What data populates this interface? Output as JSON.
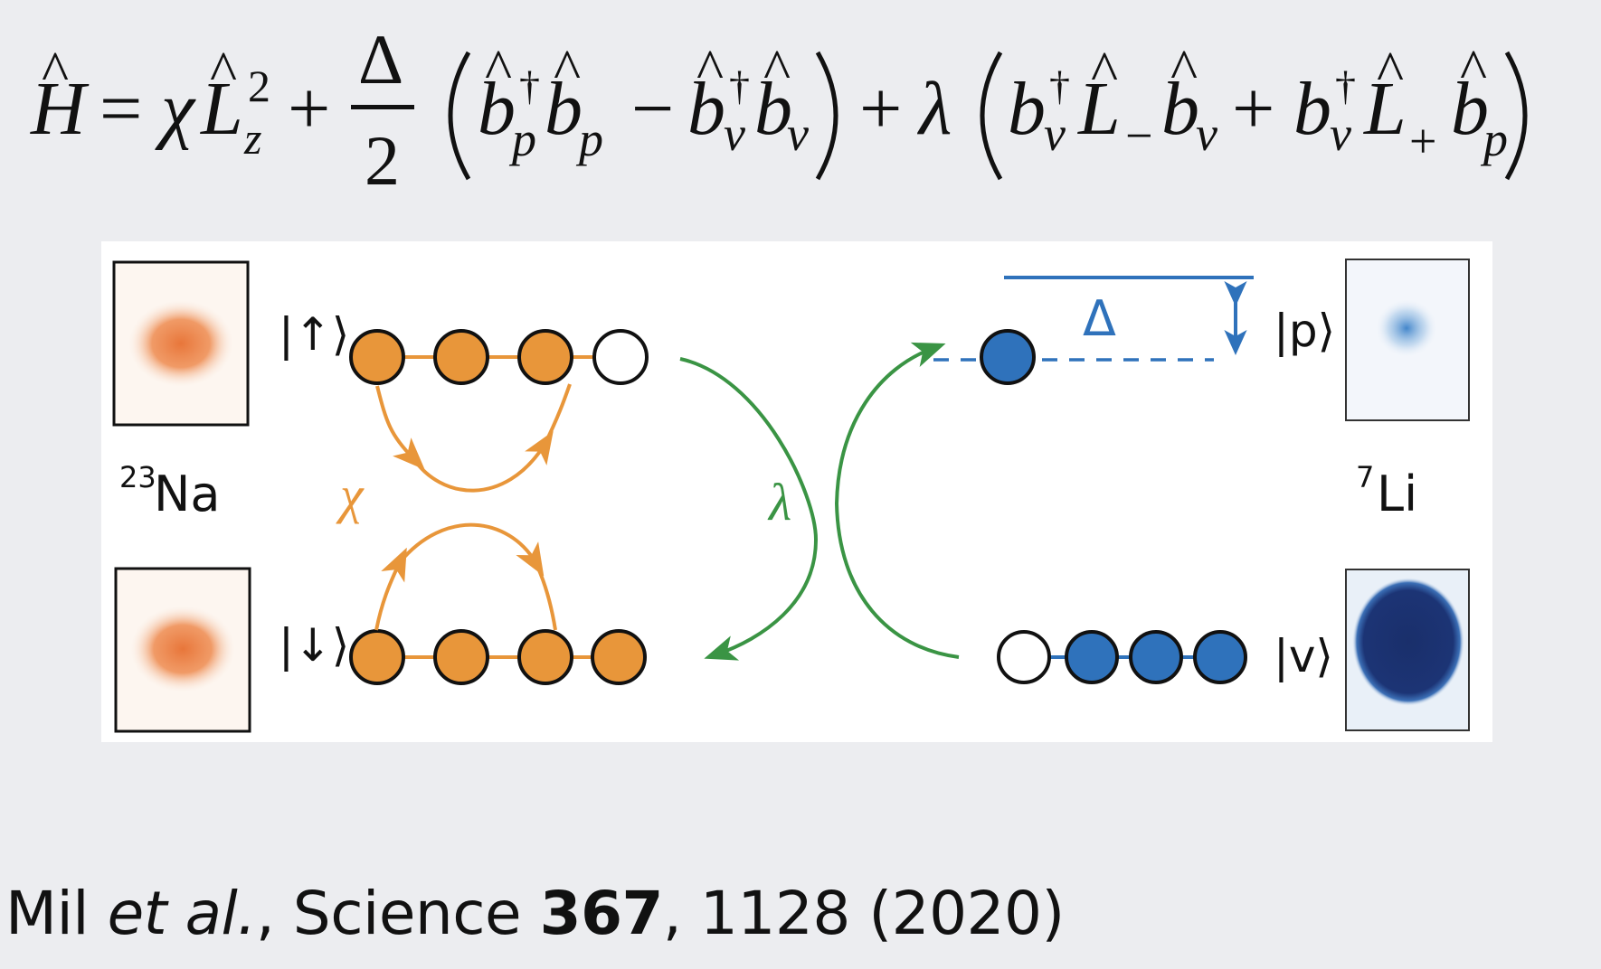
{
  "equation": {
    "H": "H",
    "hat": "^",
    "equals": "=",
    "chi": "χ",
    "L": "L",
    "L_sup": "2",
    "L_sub": "z",
    "plus": "+",
    "minus": "−",
    "Delta": "Δ",
    "two": "2",
    "lambda": "λ",
    "b": "b",
    "dagger": "†",
    "p": "p",
    "v": "v",
    "L_minus_sub": "−",
    "L_plus_sub": "+"
  },
  "diagram": {
    "na_up_ket": "|↑⟩",
    "na_down_ket": "|↓⟩",
    "na_label_mass": "23",
    "na_label_el": "Na",
    "li_p_ket": "|p⟩",
    "li_v_ket": "|v⟩",
    "li_label_mass": "7",
    "li_label_el": "Li",
    "chi_label": "χ",
    "lambda_label": "λ",
    "delta_label": "Δ",
    "colors": {
      "orange": "#e8963a",
      "blue": "#2f72bb",
      "green": "#3a9444",
      "na_cloud": "#e8763a",
      "li_cloud_dense": "#1a2f6b",
      "li_cloud_light": "#3a80c8"
    }
  },
  "citation": {
    "authors": "Mil ",
    "etal": "et al.",
    "comma": ", Science ",
    "volume": "367",
    "rest": ", 1128 (2020)"
  }
}
